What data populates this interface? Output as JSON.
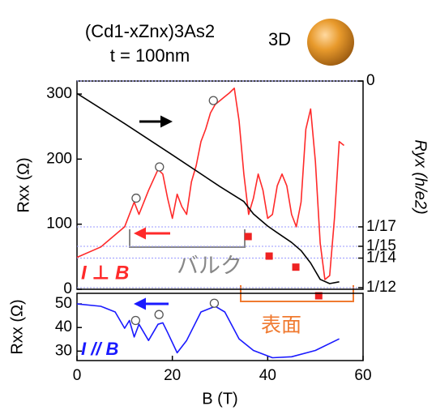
{
  "title": "(Cd1-xZnx)3As2",
  "subtitle": "t = 100nm",
  "dimension": "3D",
  "chart_data": [
    {
      "type": "line",
      "ylabel": "Rxx (Ω)",
      "y2label": "Ryx (h/e2)",
      "annotations": [
        "I ⊥ B",
        "バルク",
        "表面"
      ],
      "xlim": [
        0,
        60
      ],
      "ylim": [
        0,
        320
      ],
      "yticks": [
        0,
        100,
        200,
        300
      ],
      "y2lim": [
        0.084,
        0
      ],
      "y2ticks": [
        0,
        {
          "value": 0.058824,
          "label": "1/17"
        },
        {
          "value": 0.066667,
          "label": "1/15"
        },
        {
          "value": 0.071429,
          "label": "1/14"
        },
        {
          "value": 0.083333,
          "label": "1/12"
        }
      ],
      "series": [
        {
          "mark": "line",
          "color": "#ff2a2a",
          "x": [
            0,
            5,
            10,
            12,
            13,
            15,
            17,
            18,
            19,
            20,
            21,
            22,
            23,
            24,
            25,
            26,
            27,
            28,
            29,
            30,
            31,
            32,
            33,
            34,
            35,
            36,
            37,
            38,
            39,
            40,
            41,
            42,
            43,
            44,
            45,
            46,
            47,
            48,
            49,
            50,
            51,
            52,
            53,
            54,
            55,
            56
          ],
          "values": [
            49,
            65,
            96,
            134,
            115,
            152,
            184,
            177,
            140,
            109,
            146,
            127,
            115,
            165,
            190,
            227,
            246,
            271,
            284,
            290,
            296,
            302,
            309,
            259,
            177,
            115,
            140,
            177,
            152,
            109,
            115,
            159,
            177,
            159,
            115,
            96,
            134,
            246,
            277,
            196,
            71,
            15,
            21,
            109,
            227,
            221
          ]
        },
        {
          "mark": "line",
          "color": "#000000",
          "axis": "y2",
          "x": [
            0,
            10,
            20,
            30,
            35,
            37,
            40,
            42,
            45,
            47,
            49,
            51,
            53,
            55
          ],
          "values": [
            0.005,
            0.0172,
            0.0298,
            0.0426,
            0.0486,
            0.0536,
            0.0585,
            0.0612,
            0.0651,
            0.0684,
            0.0734,
            0.08,
            0.0817,
            0.081
          ]
        },
        {
          "mark": "circle",
          "color": "#555555",
          "x": [
            12.4,
            17.3,
            28.6
          ],
          "values": [
            140,
            188,
            290
          ]
        },
        {
          "mark": "square",
          "color": "#ee2222",
          "x": [
            35.9,
            40.3,
            45.9,
            50.7
          ],
          "values": [
            81,
            51,
            34,
            -10
          ]
        }
      ]
    },
    {
      "type": "line",
      "ylabel": "Rxx (Ω)",
      "xlabel": "B (T)",
      "annotations": [
        "I // B"
      ],
      "xlim": [
        0,
        60
      ],
      "xticks": [
        0,
        20,
        40,
        60
      ],
      "ylim": [
        26,
        54.5
      ],
      "yticks": [
        30,
        40,
        50
      ],
      "series": [
        {
          "mark": "line",
          "color": "#1a1aff",
          "x": [
            0,
            5,
            8,
            10,
            11,
            12,
            13,
            15,
            17,
            18,
            19,
            21,
            23,
            26,
            29,
            31,
            34,
            37,
            41,
            45,
            50,
            55
          ],
          "values": [
            50,
            49,
            46.6,
            39.7,
            43,
            36,
            41.4,
            34.5,
            41.4,
            42,
            37.9,
            29.3,
            34.5,
            46.6,
            49,
            46.6,
            35.2,
            30.3,
            27.2,
            27.6,
            30.3,
            35.2
          ]
        },
        {
          "mark": "circle",
          "color": "#555555",
          "x": [
            12.3,
            17.2,
            28.8
          ],
          "values": [
            43,
            45.5,
            50.3
          ]
        }
      ]
    }
  ]
}
